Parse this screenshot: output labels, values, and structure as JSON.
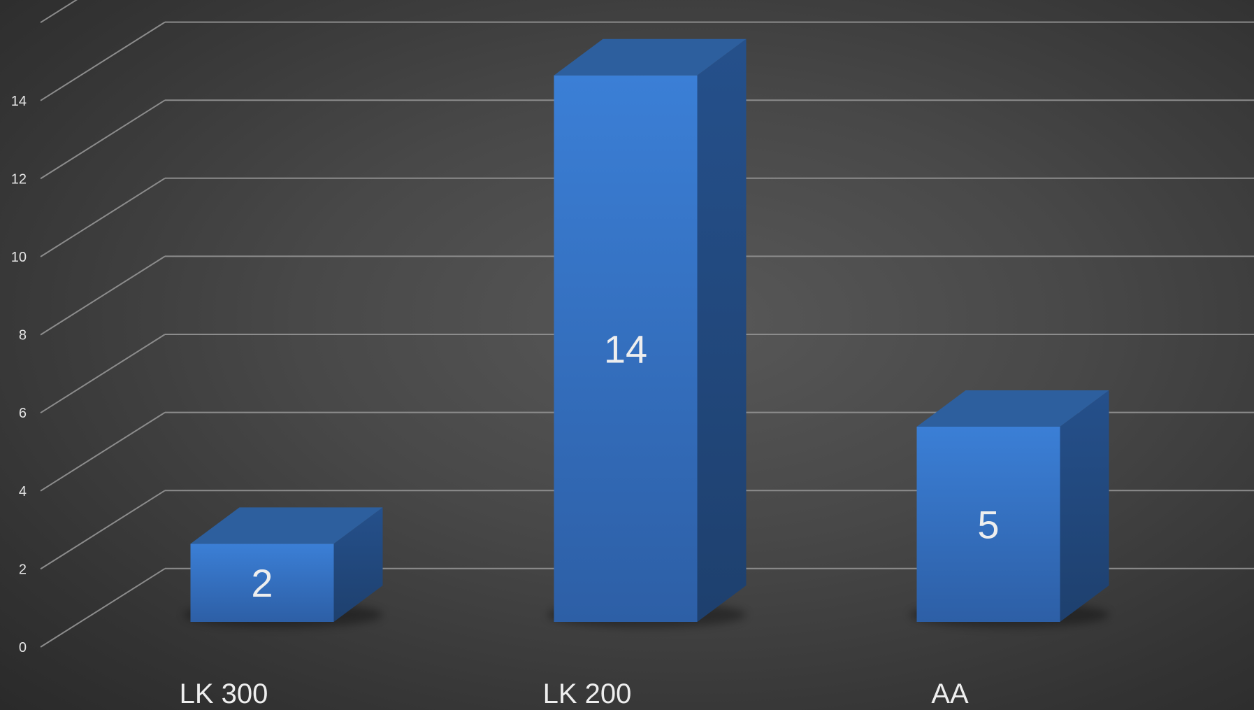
{
  "chart_data": {
    "type": "bar",
    "style": "3d-column",
    "categories": [
      "LK 300",
      "LK 200",
      "AA"
    ],
    "values": [
      2,
      14,
      5
    ],
    "data_labels": [
      "2",
      "14",
      "5"
    ],
    "y_ticks": [
      "0",
      "2",
      "4",
      "6",
      "8",
      "10",
      "12",
      "14"
    ],
    "ylim": [
      0,
      16
    ],
    "grid": true,
    "legend": "none",
    "title": "",
    "xlabel": "",
    "ylabel": "",
    "colors": {
      "bar_front": "#3a7bd5",
      "bar_front_dark": "#2c5ea8",
      "bar_top": "#2d5f9e",
      "bar_side": "#234b82",
      "grid": "#8c8c8c",
      "text": "#e6e6e6"
    }
  }
}
